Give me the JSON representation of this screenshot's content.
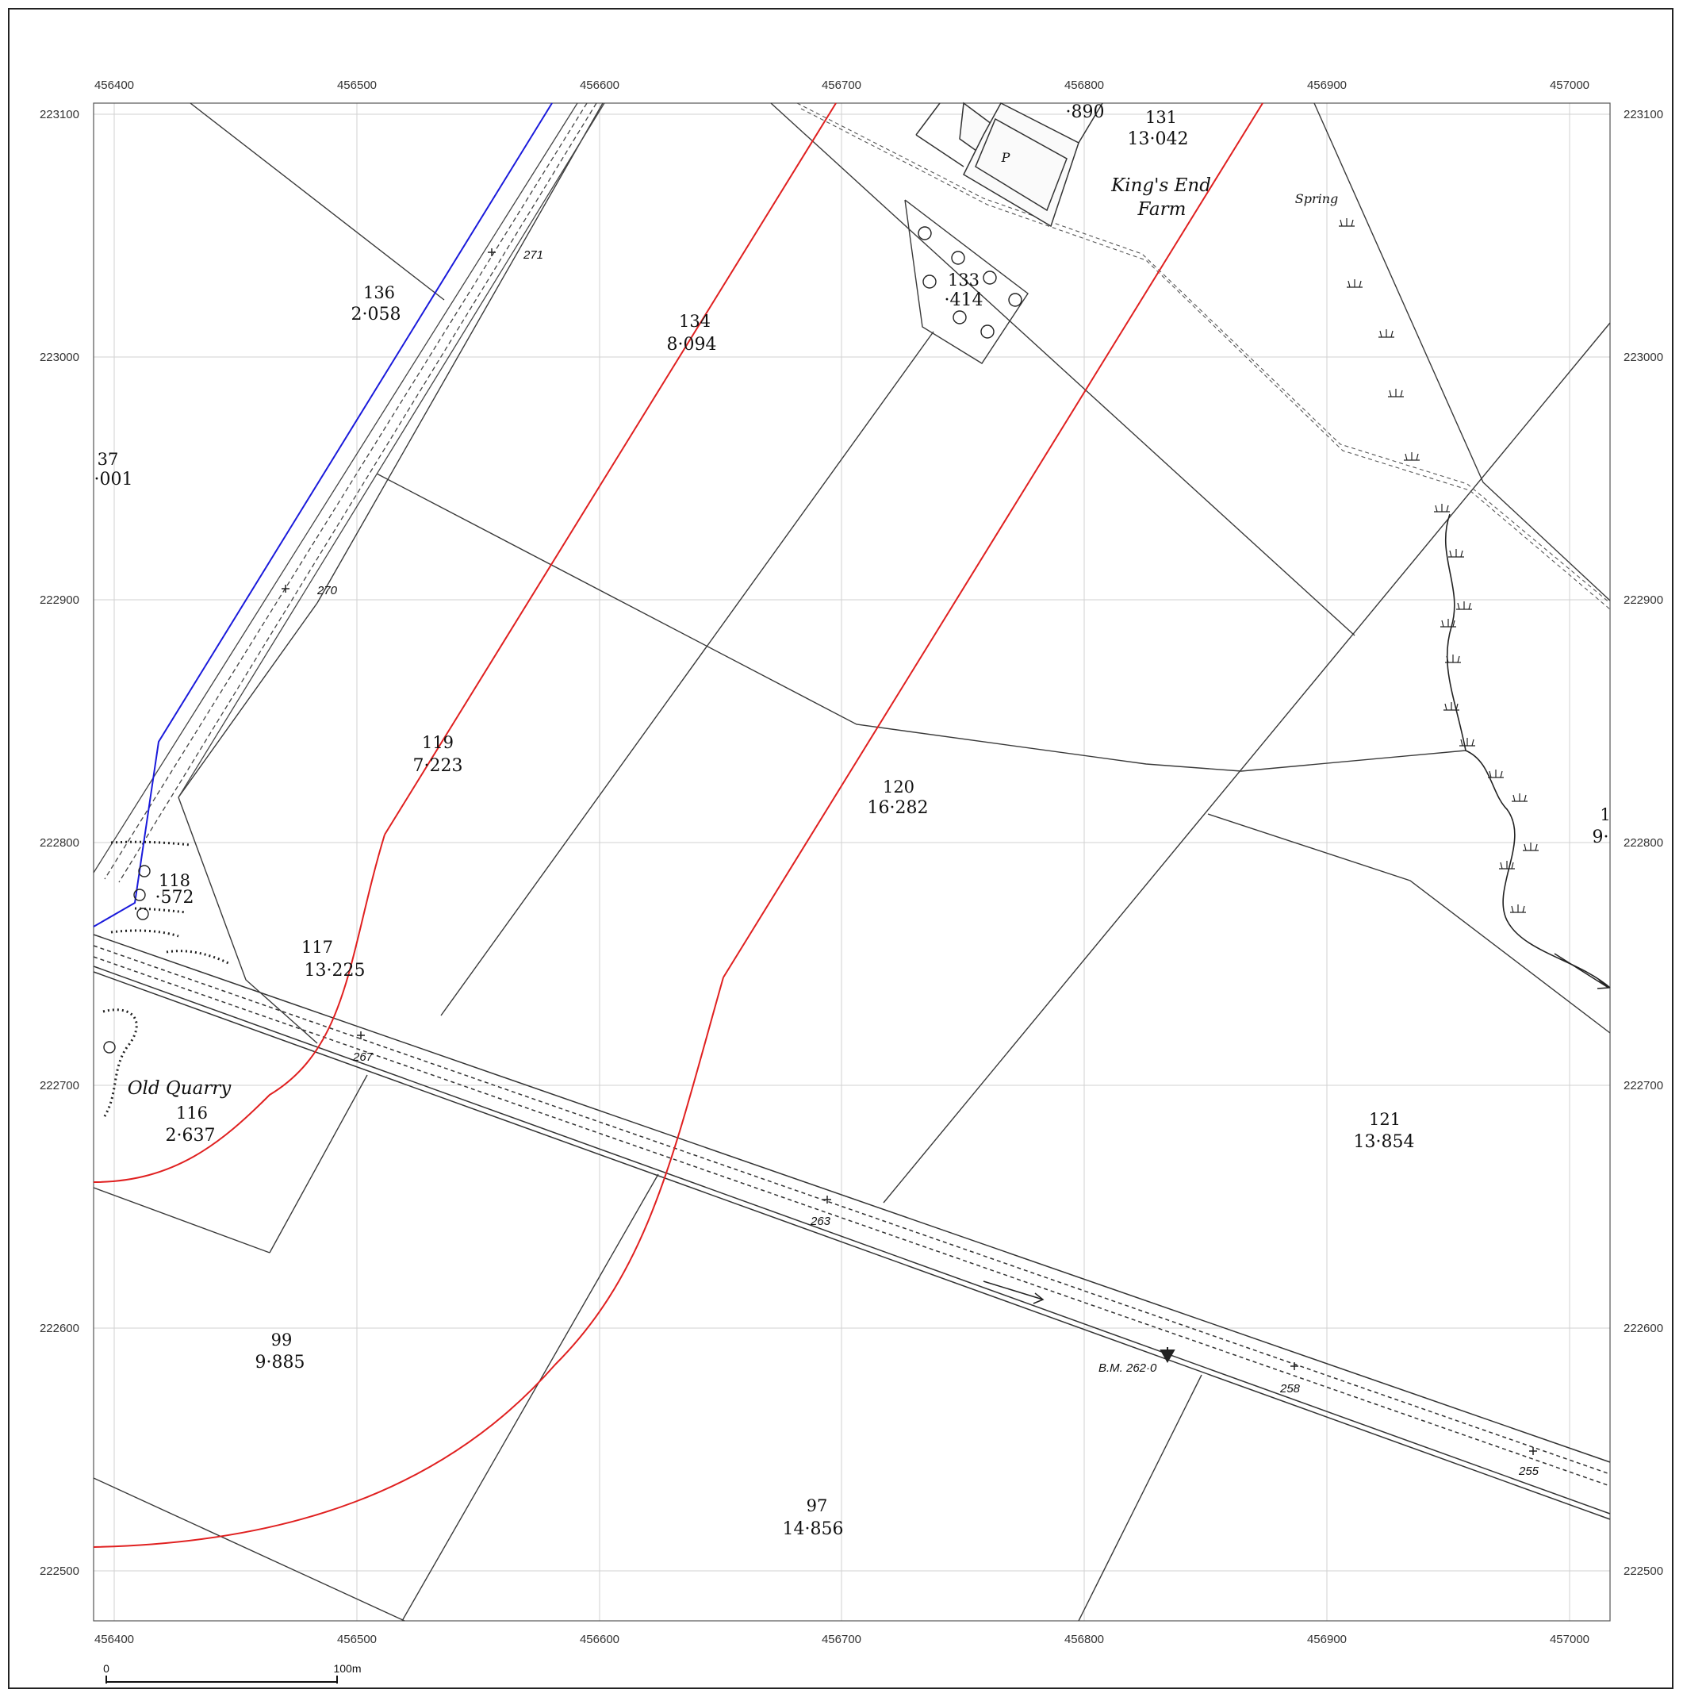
{
  "map": {
    "x_axis_labels": [
      "456400",
      "456500",
      "456600",
      "456700",
      "456800",
      "456900",
      "457000"
    ],
    "y_axis_labels": [
      "223100",
      "223000",
      "222900",
      "222800",
      "222700",
      "222600",
      "222500"
    ],
    "scale_bar": {
      "start_label": "0",
      "end_label": "100m"
    },
    "colors": {
      "red_boundary": "#e02020",
      "blue_boundary": "#1a1adb",
      "grid": "#cfcfcf",
      "linework": "#333333"
    },
    "parcels": [
      {
        "num": "131",
        "area": "13·042"
      },
      {
        "num": "",
        "area": "·890"
      },
      {
        "num": "133",
        "area": "·414"
      },
      {
        "num": "134",
        "area": "8·094"
      },
      {
        "num": "136",
        "area": "2·058"
      },
      {
        "num": "37",
        "area": "·001"
      },
      {
        "num": "119",
        "area": "7·223"
      },
      {
        "num": "120",
        "area": "16·282"
      },
      {
        "num": "118",
        "area": "·572"
      },
      {
        "num": "117",
        "area": "13·225"
      },
      {
        "num": "116",
        "area": "2·637"
      },
      {
        "num": "121",
        "area": "13·854"
      },
      {
        "num": "99",
        "area": "9·885"
      },
      {
        "num": "97",
        "area": "14·856"
      },
      {
        "num": "1",
        "area": "9·"
      }
    ],
    "place_names": [
      "King's End",
      "Farm",
      "Old Quarry",
      "Spring"
    ],
    "spot_heights": [
      "271",
      "270",
      "267",
      "263",
      "258",
      "255"
    ],
    "benchmark": "B.M. 262·0",
    "building_label": "P"
  }
}
